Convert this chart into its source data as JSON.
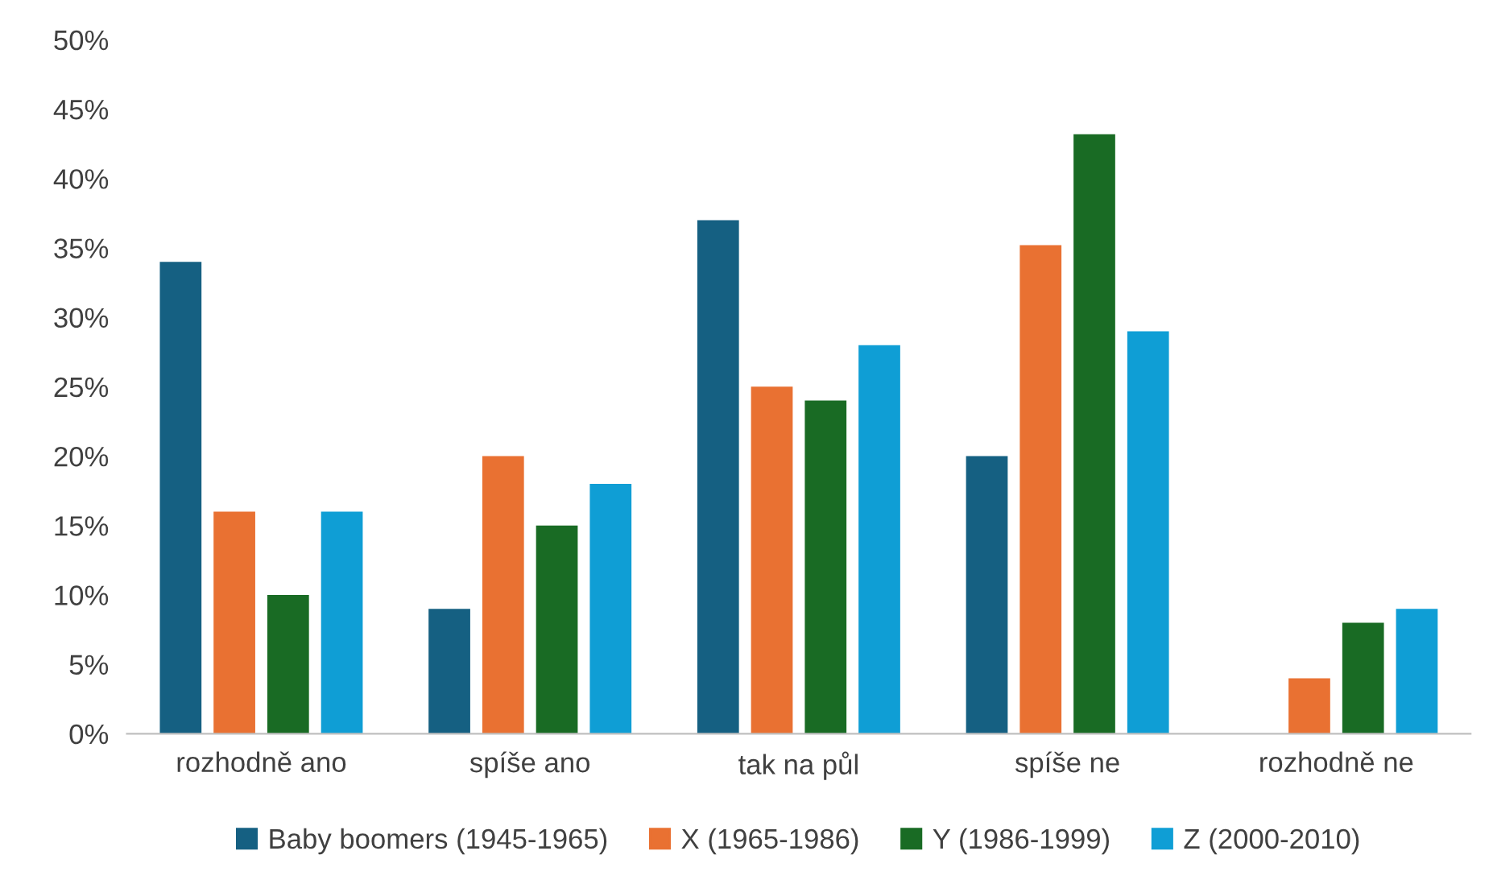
{
  "chart_data": {
    "type": "bar",
    "categories": [
      "rozhodně ano",
      "spíše ano",
      "tak na půl",
      "spíše ne",
      "rozhodně ne"
    ],
    "series": [
      {
        "name": "Baby boomers (1945-1965)",
        "color": "#156082",
        "values": [
          34,
          9,
          37,
          20,
          0
        ]
      },
      {
        "name": "X (1965-1986)",
        "color": "#e97132",
        "values": [
          16,
          20,
          25,
          35.2,
          4
        ]
      },
      {
        "name": "Y (1986-1999)",
        "color": "#196b24",
        "values": [
          10,
          15,
          24,
          43.2,
          8
        ]
      },
      {
        "name": "Z (2000-2010)",
        "color": "#0f9ed5",
        "values": [
          16,
          18,
          28,
          29,
          9
        ]
      }
    ],
    "ylim": [
      0,
      50
    ],
    "yticks": [
      {
        "value": 0,
        "label": "0%"
      },
      {
        "value": 5,
        "label": "5%"
      },
      {
        "value": 10,
        "label": "10%"
      },
      {
        "value": 15,
        "label": "15%"
      },
      {
        "value": 20,
        "label": "20%"
      },
      {
        "value": 25,
        "label": "25%"
      },
      {
        "value": 30,
        "label": "30%"
      },
      {
        "value": 35,
        "label": "35%"
      },
      {
        "value": 40,
        "label": "40%"
      },
      {
        "value": 45,
        "label": "45%"
      },
      {
        "value": 50,
        "label": "50%"
      }
    ],
    "grid": false,
    "legend": "bottom"
  }
}
